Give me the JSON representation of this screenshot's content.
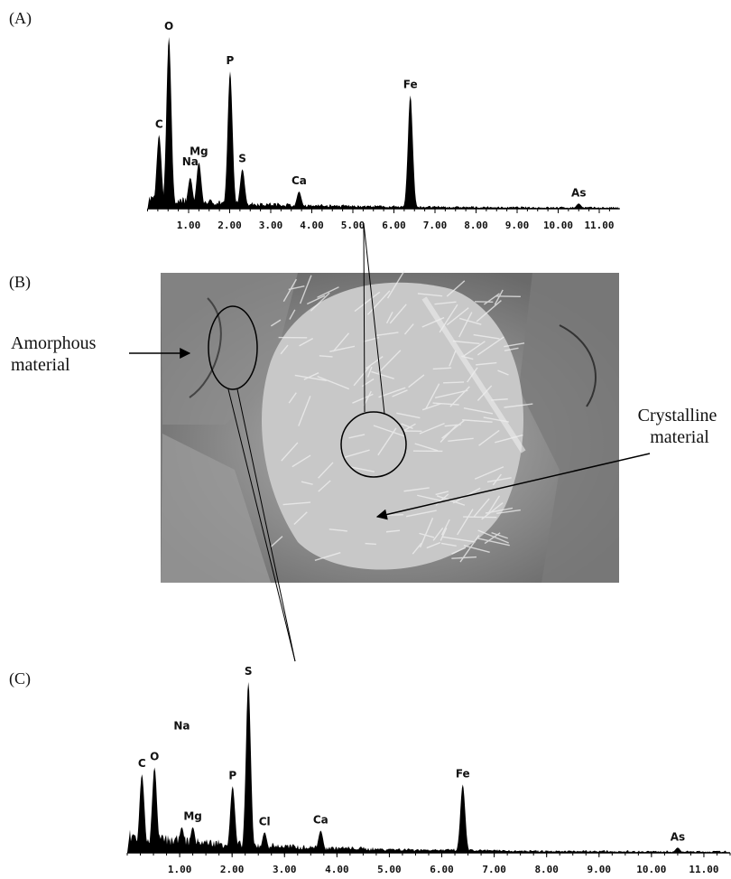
{
  "panels": {
    "a": "(A)",
    "b": "(B)",
    "c": "(C)"
  },
  "image": {
    "amorphous": [
      "Amorphous",
      "material"
    ],
    "crystalline": [
      "Crystalline",
      "material"
    ]
  },
  "chart_data": [
    {
      "type": "spectrum",
      "xlim": [
        0,
        11.5
      ],
      "xticks": [
        {
          "value": 1,
          "label": "1.00"
        },
        {
          "value": 2,
          "label": "2.00"
        },
        {
          "value": 3,
          "label": "3.00"
        },
        {
          "value": 4,
          "label": "4.00"
        },
        {
          "value": 5,
          "label": "5.00"
        },
        {
          "value": 6,
          "label": "6.00"
        },
        {
          "value": 7,
          "label": "7.00"
        },
        {
          "value": 8,
          "label": "8.00"
        },
        {
          "value": 9,
          "label": "9.00"
        },
        {
          "value": 10,
          "label": "10.00"
        },
        {
          "value": 11,
          "label": "11.00"
        }
      ],
      "peaks": [
        {
          "label": "C",
          "x": 0.28,
          "height": 43
        },
        {
          "label": "O",
          "x": 0.52,
          "height": 100
        },
        {
          "label": "Na",
          "x": 1.04,
          "height": 18
        },
        {
          "label": "Mg",
          "x": 1.25,
          "height": 27
        },
        {
          "label": "P",
          "x": 2.01,
          "height": 80
        },
        {
          "label": "S",
          "x": 2.31,
          "height": 23
        },
        {
          "label": "Ca",
          "x": 3.69,
          "height": 10
        },
        {
          "label": "Fe",
          "x": 6.4,
          "height": 66
        },
        {
          "label": "As",
          "x": 10.5,
          "height": 3
        }
      ]
    },
    {
      "type": "spectrum",
      "xlim": [
        0,
        11.5
      ],
      "xticks": [
        {
          "value": 1,
          "label": "1.00"
        },
        {
          "value": 2,
          "label": "2.00"
        },
        {
          "value": 3,
          "label": "3.00"
        },
        {
          "value": 4,
          "label": "4.00"
        },
        {
          "value": 5,
          "label": "5.00"
        },
        {
          "value": 6,
          "label": "6.00"
        },
        {
          "value": 7,
          "label": "7.00"
        },
        {
          "value": 8,
          "label": "8.00"
        },
        {
          "value": 9,
          "label": "9.00"
        },
        {
          "value": 10,
          "label": "10.00"
        },
        {
          "value": 11,
          "label": "11.00"
        }
      ],
      "peaks": [
        {
          "label": "C",
          "x": 0.28,
          "height": 46
        },
        {
          "label": "O",
          "x": 0.52,
          "height": 50
        },
        {
          "label": "Na",
          "x": 1.04,
          "height": 15
        },
        {
          "label": "Mg",
          "x": 1.25,
          "height": 15
        },
        {
          "label": "P",
          "x": 2.01,
          "height": 39
        },
        {
          "label": "S",
          "x": 2.31,
          "height": 100
        },
        {
          "label": "Cl",
          "x": 2.62,
          "height": 12
        },
        {
          "label": "Ca",
          "x": 3.69,
          "height": 13
        },
        {
          "label": "Fe",
          "x": 6.4,
          "height": 40
        },
        {
          "label": "As",
          "x": 10.5,
          "height": 3
        }
      ]
    }
  ]
}
